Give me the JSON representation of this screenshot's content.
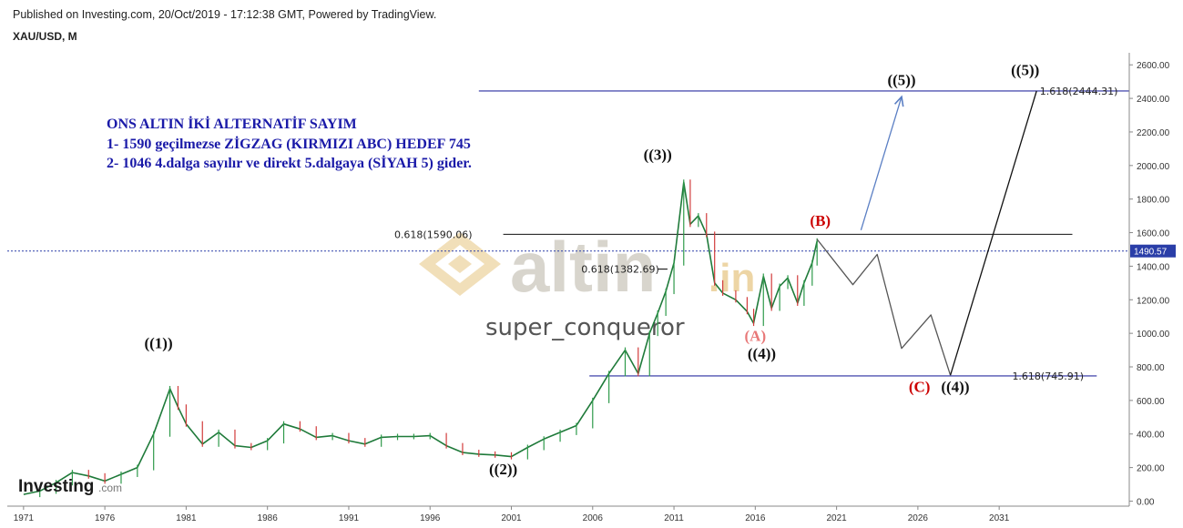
{
  "header": {
    "published": "Published on Investing.com, 20/Oct/2019 - 17:12:38 GMT, Powered by TradingView.",
    "symbol": "XAU/USD, M"
  },
  "logo": {
    "text": "Investing",
    "suffix": ".com"
  },
  "watermark": {
    "brand": "altin",
    "brand_suffix": ".in",
    "author": "super_conqueror"
  },
  "annotation": {
    "lines": [
      "ONS ALTIN İKİ ALTERNATİF SAYIM",
      "1- 1590 geçilmezse ZİGZAG (KIRMIZI ABC) HEDEF   745",
      "2- 1046  4.dalga sayılır ve direkt 5.dalgaya (SİYAH 5) gider."
    ],
    "color": "#1a1aa8"
  },
  "chart_data": {
    "type": "line",
    "title": "",
    "xlabel": "",
    "ylabel": "",
    "x_ticks": [
      "1971",
      "1976",
      "1981",
      "1986",
      "1991",
      "1996",
      "2001",
      "2006",
      "2011",
      "2016",
      "2021",
      "2026",
      "2031"
    ],
    "y_ticks": [
      "0.00",
      "200.00",
      "400.00",
      "600.00",
      "800.00",
      "1000.00",
      "1200.00",
      "1400.00",
      "1600.00",
      "1800.00",
      "2000.00",
      "2200.00",
      "2400.00",
      "2600.00"
    ],
    "xlim": [
      1970.0,
      2039.0
    ],
    "ylim": [
      -30,
      2650
    ],
    "grid": false,
    "current_price": {
      "value": 1490.57,
      "label": "1490.57",
      "color": "#2a3ea8"
    },
    "series": [
      {
        "role": "price",
        "color": "#1f7a3a",
        "points": [
          [
            1971.0,
            40
          ],
          [
            1972.0,
            60
          ],
          [
            1973.0,
            110
          ],
          [
            1974.0,
            170
          ],
          [
            1975.0,
            150
          ],
          [
            1976.0,
            120
          ],
          [
            1977.0,
            160
          ],
          [
            1978.0,
            200
          ],
          [
            1979.0,
            400
          ],
          [
            1980.0,
            670
          ],
          [
            1980.5,
            560
          ],
          [
            1981.0,
            460
          ],
          [
            1982.0,
            340
          ],
          [
            1983.0,
            410
          ],
          [
            1984.0,
            330
          ],
          [
            1985.0,
            320
          ],
          [
            1986.0,
            360
          ],
          [
            1987.0,
            460
          ],
          [
            1988.0,
            430
          ],
          [
            1989.0,
            380
          ],
          [
            1990.0,
            390
          ],
          [
            1991.0,
            360
          ],
          [
            1992.0,
            340
          ],
          [
            1993.0,
            380
          ],
          [
            1994.0,
            385
          ],
          [
            1995.0,
            385
          ],
          [
            1996.0,
            390
          ],
          [
            1997.0,
            330
          ],
          [
            1998.0,
            290
          ],
          [
            1999.0,
            280
          ],
          [
            2000.0,
            275
          ],
          [
            2001.0,
            265
          ],
          [
            2002.0,
            320
          ],
          [
            2003.0,
            370
          ],
          [
            2004.0,
            410
          ],
          [
            2005.0,
            450
          ],
          [
            2006.0,
            600
          ],
          [
            2007.0,
            760
          ],
          [
            2008.0,
            900
          ],
          [
            2008.8,
            760
          ],
          [
            2009.5,
            1000
          ],
          [
            2010.0,
            1120
          ],
          [
            2010.5,
            1250
          ],
          [
            2011.0,
            1420
          ],
          [
            2011.6,
            1900
          ],
          [
            2012.0,
            1650
          ],
          [
            2012.5,
            1700
          ],
          [
            2013.0,
            1590
          ],
          [
            2013.5,
            1300
          ],
          [
            2014.0,
            1240
          ],
          [
            2014.8,
            1200
          ],
          [
            2015.5,
            1130
          ],
          [
            2015.9,
            1060
          ],
          [
            2016.5,
            1340
          ],
          [
            2017.0,
            1150
          ],
          [
            2017.5,
            1280
          ],
          [
            2018.0,
            1330
          ],
          [
            2018.6,
            1180
          ],
          [
            2019.0,
            1300
          ],
          [
            2019.5,
            1420
          ],
          [
            2019.8,
            1550
          ]
        ]
      },
      {
        "role": "projection-zigzag",
        "color": "#555555",
        "points": [
          [
            2019.8,
            1560
          ],
          [
            2022.0,
            1290
          ],
          [
            2023.5,
            1470
          ],
          [
            2025.0,
            910
          ],
          [
            2026.8,
            1110
          ],
          [
            2028.0,
            750
          ]
        ]
      },
      {
        "role": "projection-wave5",
        "color": "#111111",
        "points": [
          [
            2028.0,
            750
          ],
          [
            2033.3,
            2444
          ]
        ]
      },
      {
        "role": "projection-arrow",
        "color": "#5b7fc4",
        "points": [
          [
            2022.5,
            1615
          ],
          [
            2025.0,
            2410
          ]
        ]
      }
    ],
    "levels": [
      {
        "value": 2444.31,
        "label": "1.618(2444.31)",
        "x_from": 1999.0,
        "x_to": 2039.0,
        "color": "#2a2ea0",
        "label_at": 2033.5
      },
      {
        "value": 1590.06,
        "label": "0.618(1590.06)",
        "x_from": 2000.5,
        "x_to": 2035.5,
        "color": "#111111",
        "label_at": 1993.8
      },
      {
        "value": 1382.69,
        "label": "0.618(1382.69)",
        "x_from": 2010.0,
        "x_to": 2010.6,
        "color": "#111111",
        "label_at": 2005.3
      },
      {
        "value": 745.91,
        "label": "1.618(745.91)",
        "x_from": 2005.8,
        "x_to": 2037.0,
        "color": "#2a2ea0",
        "label_at": 2031.8
      }
    ],
    "wave_labels": [
      {
        "text": "((1))",
        "x": 1979.3,
        "y": 910,
        "color": "#111111"
      },
      {
        "text": "((2))",
        "x": 2000.5,
        "y": 160,
        "color": "#111111"
      },
      {
        "text": "((3))",
        "x": 2010.0,
        "y": 2035,
        "color": "#111111"
      },
      {
        "text": "((4))",
        "x": 2016.4,
        "y": 850,
        "color": "#111111"
      },
      {
        "text": "((5))",
        "x": 2025.0,
        "y": 2480,
        "color": "#111111"
      },
      {
        "text": "((5))",
        "x": 2032.6,
        "y": 2540,
        "color": "#111111"
      },
      {
        "text": "(A)",
        "x": 2016.0,
        "y": 955,
        "color": "#e87878"
      },
      {
        "text": "(B)",
        "x": 2020.0,
        "y": 1640,
        "color": "#cc0000"
      },
      {
        "text": "(C)",
        "x": 2026.1,
        "y": 650,
        "color": "#cc0000"
      },
      {
        "text": "((4))",
        "x": 2028.3,
        "y": 650,
        "color": "#111111"
      }
    ]
  }
}
